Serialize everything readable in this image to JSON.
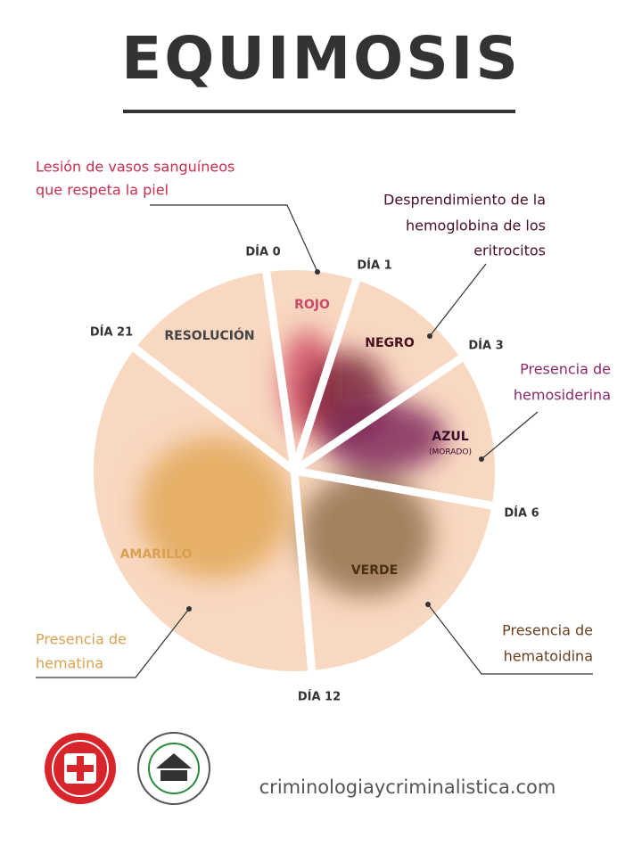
{
  "title": "EQUIMOSIS",
  "days": [
    "DÍA 0",
    "DÍA 1",
    "DÍA 3",
    "DÍA 6",
    "DÍA 12",
    "DÍA 21"
  ],
  "segments": [
    {
      "label": "ROJO"
    },
    {
      "label": "NEGRO"
    },
    {
      "label": "AZUL",
      "sublabel": "(MORADO)"
    },
    {
      "label": "VERDE"
    },
    {
      "label": "AMARILLO"
    },
    {
      "label": "RESOLUCIÓN"
    }
  ],
  "annotations": [
    {
      "lines": [
        "Lesión de vasos sanguíneos",
        "que respeta la piel"
      ]
    },
    {
      "lines": [
        "Desprendimiento de la",
        "hemoglobina de los",
        "eritrocitos"
      ]
    },
    {
      "lines": [
        "Presencia de",
        "hemosiderina"
      ]
    },
    {
      "lines": [
        "Presencia de",
        "hematoidina"
      ]
    },
    {
      "lines": [
        "Presencia de",
        "hematina"
      ]
    }
  ],
  "footer": {
    "website": "criminologiaycriminalistica.com"
  }
}
